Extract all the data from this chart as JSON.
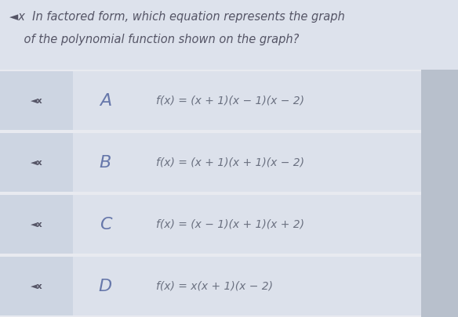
{
  "bg_color": "#e8eaf0",
  "question_bg": "#dde2ec",
  "left_panel_color": "#cdd5e2",
  "option_panel_color": "#dce1eb",
  "question_line1": "◄x  In factored form, which equation represents the graph",
  "question_line2": "    of the polynomial function shown on the graph?",
  "options": [
    {
      "label": "A",
      "equation": "f(x) = (x + 1)(x − 1)(x − 2)"
    },
    {
      "label": "B",
      "equation": "f(x) = (x + 1)(x + 1)(x − 2)"
    },
    {
      "label": "C",
      "equation": "f(x) = (x − 1)(x + 1)(x + 2)"
    },
    {
      "label": "D",
      "equation": "f(x) = x(x + 1)(x − 2)"
    }
  ],
  "speaker_icon": "◄x",
  "question_fontsize": 10.5,
  "option_label_fontsize": 16,
  "option_eq_fontsize": 10,
  "speaker_fontsize": 8,
  "text_color": "#6a7080",
  "label_color": "#6677aa",
  "question_color": "#555566",
  "right_panel_color": "#b8c0cc"
}
